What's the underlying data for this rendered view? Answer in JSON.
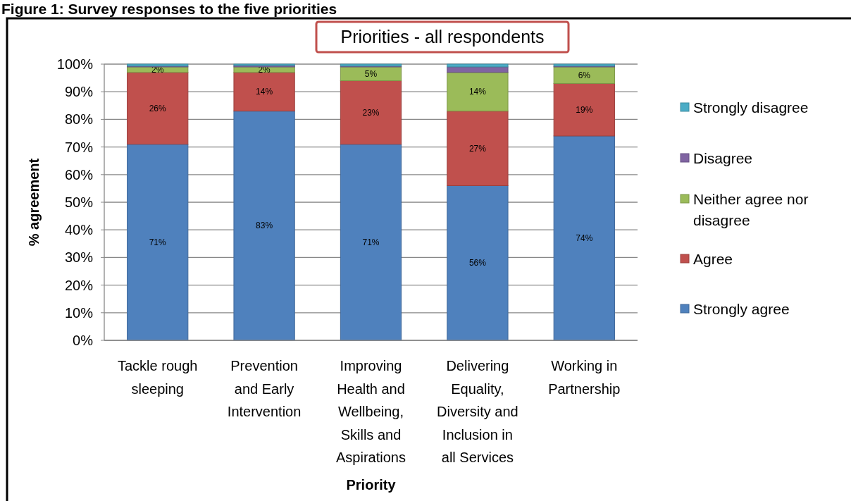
{
  "chart_data": {
    "type": "bar",
    "title": "Priorities - all respondents",
    "annotations": [
      "Figure 1: Survey responses to the five priorities"
    ],
    "xlabel": "Priority",
    "ylabel": "% agreement",
    "categories": [
      "Tackle rough sleeping",
      "Prevention and Early Intervention",
      "Improving Health and Wellbeing, Skills and Aspirations",
      "Delivering Equality, Diversity and Inclusion in all Services",
      "Working in Partnership"
    ],
    "stacked": true,
    "ylim": [
      0,
      100
    ],
    "yticks": [
      {
        "value": 0,
        "label": "0%"
      },
      {
        "value": 10,
        "label": "10%"
      },
      {
        "value": 20,
        "label": "20%"
      },
      {
        "value": 30,
        "label": "30%"
      },
      {
        "value": 40,
        "label": "40%"
      },
      {
        "value": 50,
        "label": "50%"
      },
      {
        "value": 60,
        "label": "60%"
      },
      {
        "value": 70,
        "label": "70%"
      },
      {
        "value": 80,
        "label": "80%"
      },
      {
        "value": 90,
        "label": "90%"
      },
      {
        "value": 100,
        "label": "100%"
      }
    ],
    "grid": "y",
    "legend": "right",
    "series": [
      {
        "name": "Strongly agree",
        "color": "#4f81bd",
        "values": [
          71,
          83,
          71,
          56,
          74
        ],
        "value_labels": [
          "71%",
          "83%",
          "71%",
          "56%",
          "74%"
        ]
      },
      {
        "name": "Agree",
        "color": "#c0504d",
        "values": [
          26,
          14,
          23,
          27,
          19
        ],
        "value_labels": [
          "26%",
          "14%",
          "23%",
          "27%",
          "19%"
        ]
      },
      {
        "name": "Neither agree nor disagree",
        "color": "#9bbb59",
        "values": [
          2,
          2,
          5,
          14,
          6
        ],
        "value_labels": [
          "2%",
          "2%",
          "5%",
          "14%",
          "6%"
        ]
      },
      {
        "name": "Disagree",
        "color": "#8064a2",
        "values": [
          0.3,
          0.5,
          0.3,
          2,
          0.3
        ],
        "value_labels": [
          null,
          null,
          null,
          null,
          null
        ]
      },
      {
        "name": "Strongly disagree",
        "color": "#4bacc6",
        "values": [
          0.7,
          0.5,
          0.7,
          1,
          0.7
        ],
        "value_labels": [
          null,
          null,
          null,
          null,
          null
        ]
      }
    ]
  }
}
